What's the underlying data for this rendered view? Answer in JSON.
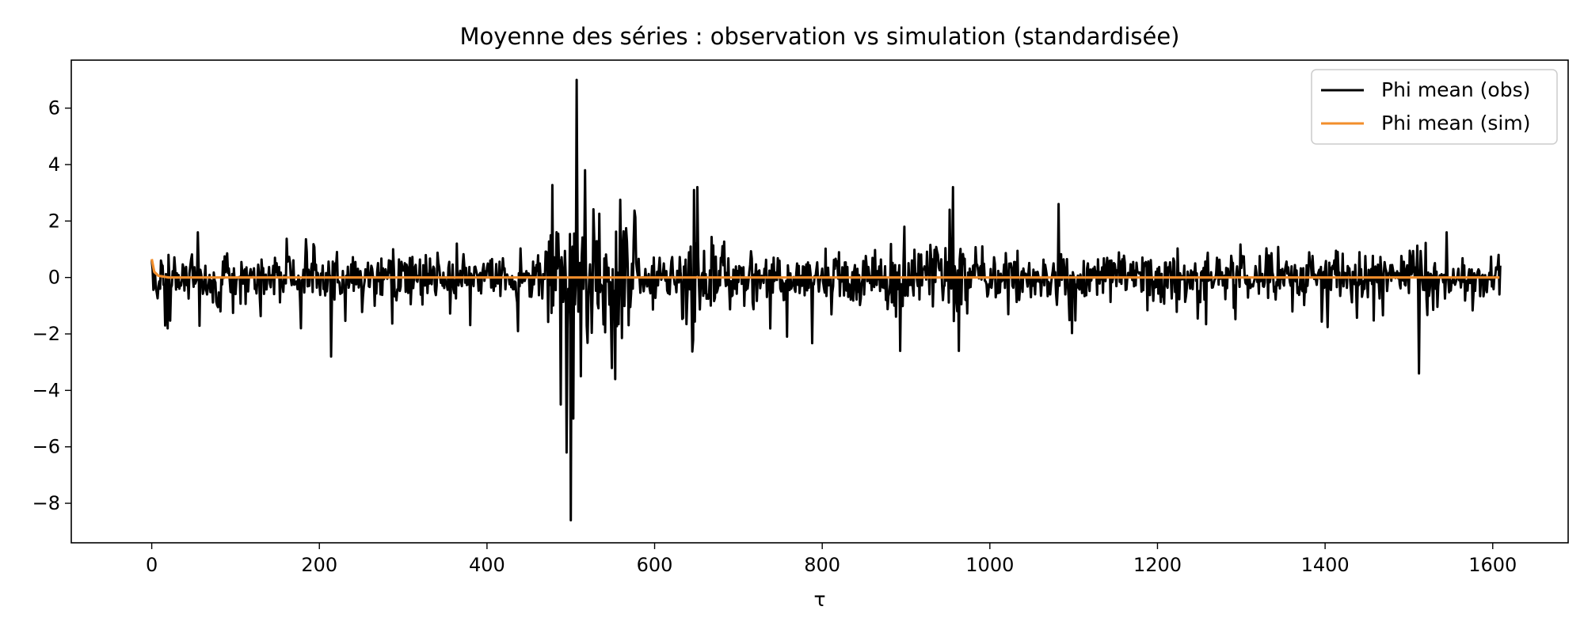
{
  "chart_data": {
    "type": "line",
    "title": "Moyenne des séries : observation vs simulation (standardisée)",
    "xlabel": "τ",
    "ylabel": "",
    "xlim": [
      -96,
      1690
    ],
    "ylim": [
      -9.4,
      7.7
    ],
    "xticks": [
      0,
      200,
      400,
      600,
      800,
      1000,
      1200,
      1400,
      1600
    ],
    "yticks": [
      -8,
      -6,
      -4,
      -2,
      0,
      2,
      4,
      6
    ],
    "grid": false,
    "legend": "top-right",
    "n_points": 1610,
    "series": [
      {
        "name": "Phi mean (obs)",
        "color": "#000000",
        "shape": "noisy",
        "keypoints": [
          [
            0,
            0.6
          ],
          [
            1,
            0.3
          ],
          [
            3,
            -0.2
          ],
          [
            10,
            -0.4
          ],
          [
            16,
            -1.7
          ],
          [
            20,
            0.8
          ],
          [
            55,
            1.6
          ],
          [
            82,
            -1.2
          ],
          [
            178,
            -1.8
          ],
          [
            214,
            -2.8
          ],
          [
            288,
            1.0
          ],
          [
            364,
            1.2
          ],
          [
            437,
            -1.9
          ],
          [
            488,
            -4.5
          ],
          [
            495,
            -6.2
          ],
          [
            500,
            -8.6
          ],
          [
            503,
            -5.0
          ],
          [
            507,
            7.0
          ],
          [
            512,
            -3.5
          ],
          [
            517,
            3.8
          ],
          [
            553,
            -3.6
          ],
          [
            647,
            3.1
          ],
          [
            651,
            3.2
          ],
          [
            893,
            -2.6
          ],
          [
            898,
            1.8
          ],
          [
            952,
            2.4
          ],
          [
            956,
            3.2
          ],
          [
            963,
            -2.6
          ],
          [
            1082,
            2.6
          ],
          [
            1512,
            -3.4
          ],
          [
            1545,
            1.6
          ],
          [
            1607,
            0.8
          ],
          [
            1608,
            -0.6
          ]
        ]
      },
      {
        "name": "Phi mean (sim)",
        "color": "#f28e2b",
        "shape": "decay",
        "points": [
          [
            0,
            0.65
          ],
          [
            3,
            0.2
          ],
          [
            8,
            0.06
          ],
          [
            20,
            0.0
          ],
          [
            1608,
            0.0
          ]
        ]
      }
    ]
  }
}
